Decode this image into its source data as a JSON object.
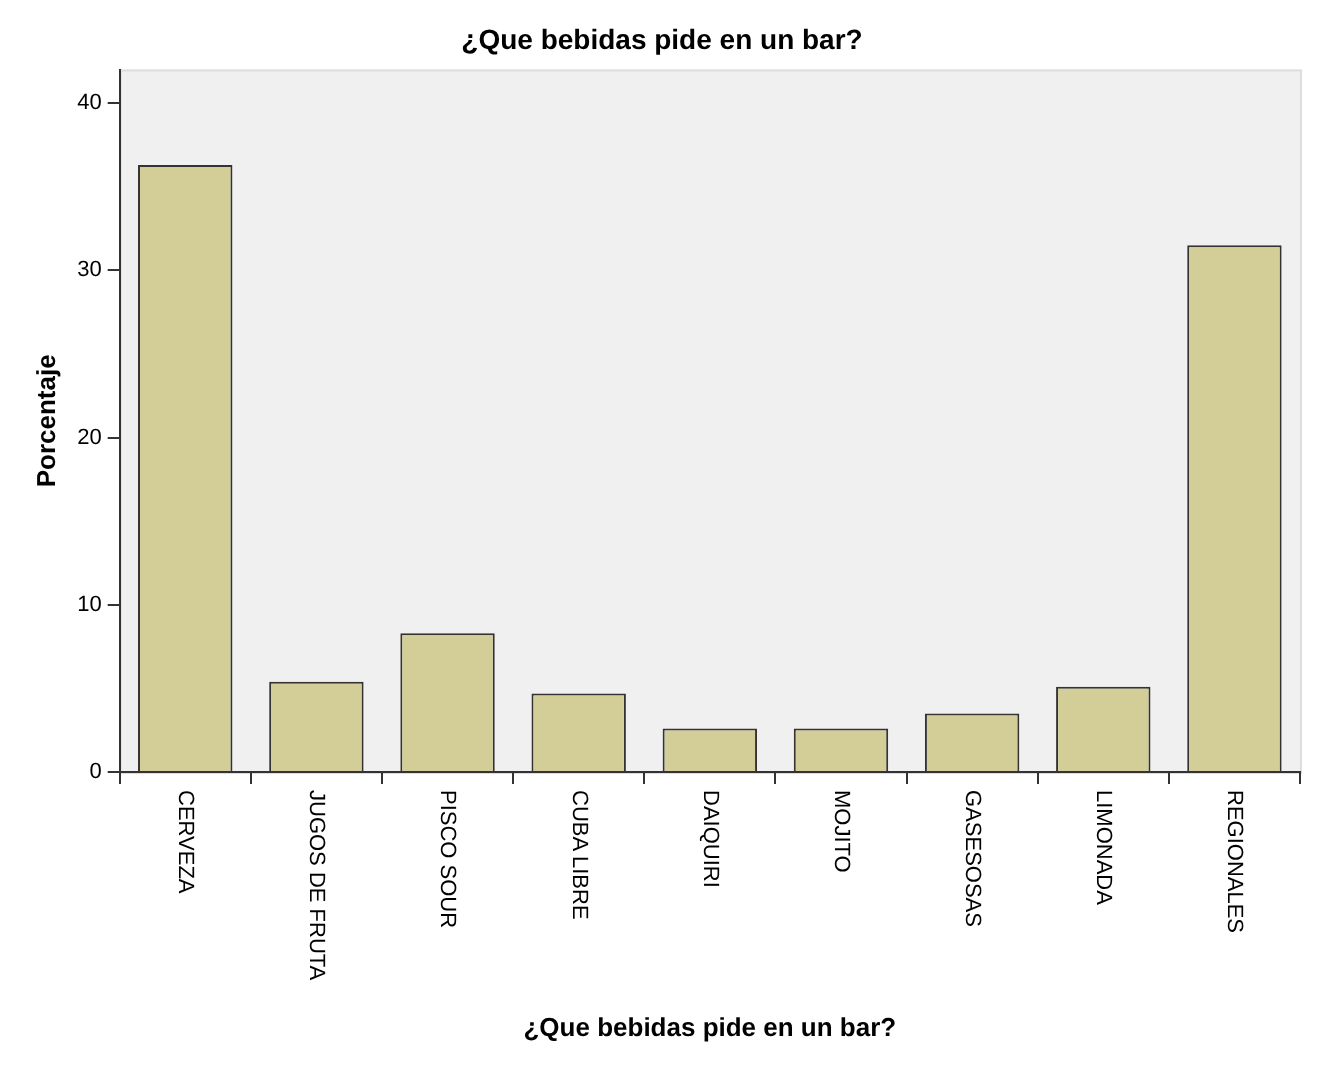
{
  "chart_data": {
    "type": "bar",
    "title": "¿Que bebidas pide en un bar?",
    "xlabel": "¿Que bebidas pide en un bar?",
    "ylabel": "Porcentaje",
    "categories": [
      "CERVEZA",
      "JUGOS DE FRUTA",
      "PISCO SOUR",
      "CUBA LIBRE",
      "DAIQUIRI",
      "MOJITO",
      "GASESOSAS",
      "LIMONADA",
      "REGIONALES"
    ],
    "values": [
      36.3,
      5.4,
      8.3,
      4.7,
      2.6,
      2.6,
      3.5,
      5.1,
      31.5
    ],
    "color": "#d3ce98",
    "ylim": [
      0,
      42
    ],
    "yticks": [
      0,
      10,
      20,
      30,
      40
    ],
    "grid": false,
    "legend": false
  }
}
